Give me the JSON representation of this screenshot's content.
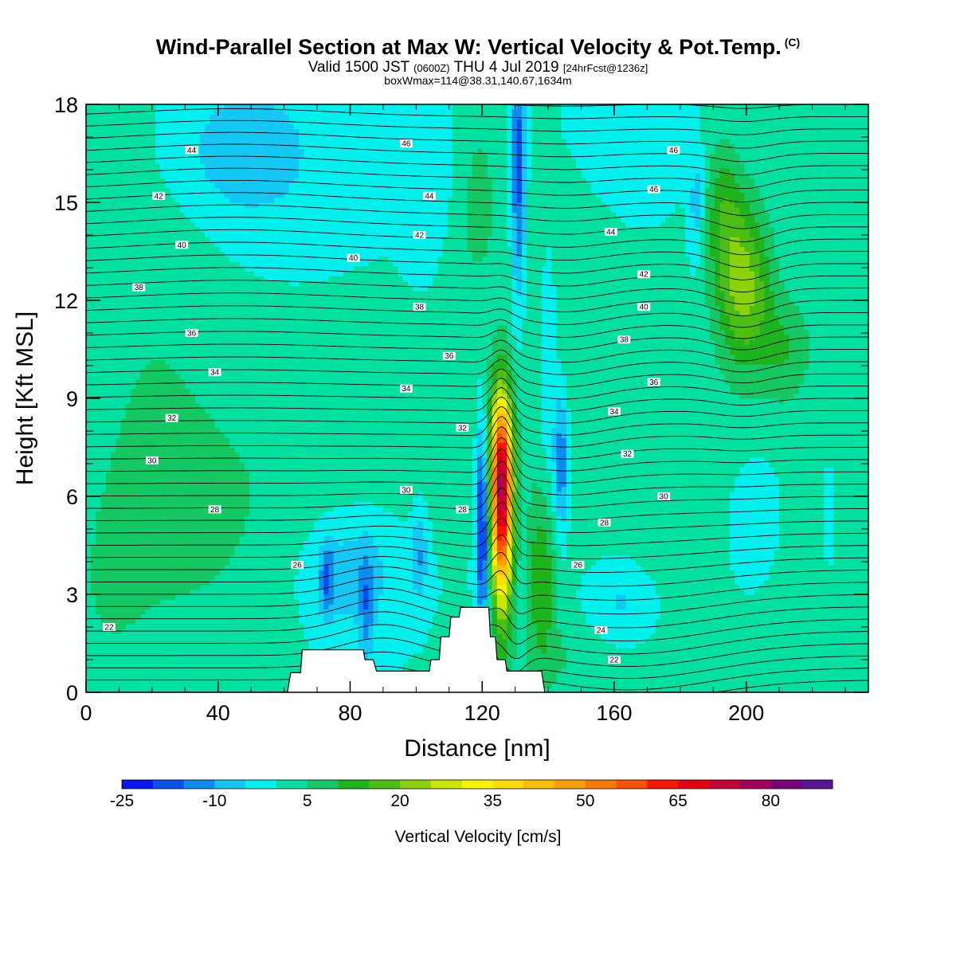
{
  "header": {
    "title": "Wind-Parallel Section at Max W: Vertical Velocity & Pot.Temp.",
    "copyright": "(C)",
    "valid_prefix": "Valid 1500 JST",
    "valid_utc": "(0600Z)",
    "valid_date": "THU 4 Jul 2019",
    "forecast": "[24hrFcst@1236z]",
    "box_info": "boxWmax=114@38.31,140.67,1634m"
  },
  "chart_data": {
    "type": "heatmap",
    "xlabel": "Distance [nm]",
    "ylabel": "Height [Kft MSL]",
    "xlim": [
      0,
      237
    ],
    "ylim": [
      0,
      18
    ],
    "x_ticks": [
      "0",
      "40",
      "80",
      "120",
      "160",
      "200"
    ],
    "y_ticks": [
      "0",
      "3",
      "6",
      "9",
      "12",
      "15",
      "18"
    ],
    "x_tick_values": [
      0,
      40,
      80,
      120,
      160,
      200
    ],
    "y_tick_values": [
      0,
      3,
      6,
      9,
      12,
      15,
      18
    ],
    "colorbar": {
      "title": "Vertical Velocity [cm/s]",
      "min": -25,
      "step": 5,
      "labels": [
        "-25",
        "-10",
        "5",
        "20",
        "35",
        "50",
        "65",
        "80"
      ],
      "label_values": [
        -25,
        -10,
        5,
        20,
        35,
        50,
        65,
        80
      ],
      "colors": [
        "#0a14f0",
        "#0a50f0",
        "#0a8cf0",
        "#14c8f5",
        "#00f0f0",
        "#00e0a0",
        "#14c864",
        "#1eb41e",
        "#4bbe14",
        "#8cd20a",
        "#c8e600",
        "#f5f500",
        "#ffdc00",
        "#ffbe00",
        "#ffa000",
        "#ff7800",
        "#ff5000",
        "#ff1400",
        "#e60014",
        "#c80032",
        "#a0005a",
        "#780078",
        "#5a1496"
      ]
    },
    "background_value": 0,
    "terrain": [
      {
        "x": 0,
        "h": 0
      },
      {
        "x": 61,
        "h": 0
      },
      {
        "x": 62,
        "h": 0.6
      },
      {
        "x": 65,
        "h": 0.6
      },
      {
        "x": 65.5,
        "h": 1.3
      },
      {
        "x": 84,
        "h": 1.3
      },
      {
        "x": 84.5,
        "h": 1.0
      },
      {
        "x": 87,
        "h": 1.0
      },
      {
        "x": 88,
        "h": 0.65
      },
      {
        "x": 104,
        "h": 0.65
      },
      {
        "x": 104.5,
        "h": 1.0
      },
      {
        "x": 107,
        "h": 1.0
      },
      {
        "x": 107.5,
        "h": 1.7
      },
      {
        "x": 110,
        "h": 1.7
      },
      {
        "x": 110.5,
        "h": 2.3
      },
      {
        "x": 113,
        "h": 2.3
      },
      {
        "x": 113.5,
        "h": 2.6
      },
      {
        "x": 122,
        "h": 2.6
      },
      {
        "x": 122.5,
        "h": 1.7
      },
      {
        "x": 124,
        "h": 1.7
      },
      {
        "x": 124.5,
        "h": 1.0
      },
      {
        "x": 127,
        "h": 1.0
      },
      {
        "x": 127.5,
        "h": 0.65
      },
      {
        "x": 138,
        "h": 0.65
      },
      {
        "x": 139,
        "h": 0
      },
      {
        "x": 237,
        "h": 0
      }
    ],
    "w_features": [
      {
        "x": 126,
        "y": 5.5,
        "sx": 2.2,
        "sy": 2.2,
        "amp": 60
      },
      {
        "x": 125.5,
        "y": 7.2,
        "sx": 2.5,
        "sy": 1.5,
        "amp": 25
      },
      {
        "x": 138,
        "y": 3.5,
        "sx": 3,
        "sy": 1.7,
        "amp": 14
      },
      {
        "x": 199,
        "y": 12.5,
        "sx": 6,
        "sy": 1.8,
        "amp": 22
      },
      {
        "x": 193,
        "y": 15,
        "sx": 4,
        "sy": 1.5,
        "amp": 10
      },
      {
        "x": 212,
        "y": 10.5,
        "sx": 6,
        "sy": 1.2,
        "amp": 9
      },
      {
        "x": 118,
        "y": 15,
        "sx": 7,
        "sy": 3,
        "amp": 6
      },
      {
        "x": 35,
        "y": 5,
        "sx": 25,
        "sy": 3,
        "amp": 5
      },
      {
        "x": 175,
        "y": 6,
        "sx": 22,
        "sy": 2.5,
        "amp": 5
      },
      {
        "x": 150,
        "y": 1,
        "sx": 20,
        "sy": 1,
        "amp": 5
      },
      {
        "x": 20,
        "y": 11,
        "sx": 15,
        "sy": 5,
        "amp": 4
      },
      {
        "x": 140,
        "y": 12,
        "sx": 8,
        "sy": 4,
        "amp": 4
      },
      {
        "x": 224,
        "y": 3,
        "sx": 12,
        "sy": 3,
        "amp": 4
      },
      {
        "x": 90,
        "y": 8,
        "sx": 30,
        "sy": 1.8,
        "amp": 3
      },
      {
        "x": 5,
        "y": 2,
        "sx": 10,
        "sy": 3,
        "amp": 3
      },
      {
        "x": 120,
        "y": 5.2,
        "sx": 1.3,
        "sy": 2.2,
        "amp": -25
      },
      {
        "x": 144,
        "y": 7,
        "sx": 1.6,
        "sy": 1.6,
        "amp": -17
      },
      {
        "x": 140,
        "y": 10,
        "sx": 2,
        "sy": 3,
        "amp": -8
      },
      {
        "x": 131,
        "y": 16,
        "sx": 1.6,
        "sy": 3,
        "amp": -19
      },
      {
        "x": 80,
        "y": 3.6,
        "sx": 10,
        "sy": 1.3,
        "amp": -9
      },
      {
        "x": 73,
        "y": 3.5,
        "sx": 1.5,
        "sy": 0.8,
        "amp": -12
      },
      {
        "x": 85,
        "y": 2.5,
        "sx": 1.5,
        "sy": 1.2,
        "amp": -10
      },
      {
        "x": 101,
        "y": 4.2,
        "sx": 1.6,
        "sy": 1,
        "amp": -10
      },
      {
        "x": 162,
        "y": 2.6,
        "sx": 8,
        "sy": 1.2,
        "amp": -8
      },
      {
        "x": 48,
        "y": 16.5,
        "sx": 16,
        "sy": 1.6,
        "amp": -9
      },
      {
        "x": 106,
        "y": 16.5,
        "sx": 5,
        "sy": 2,
        "amp": -6
      },
      {
        "x": 160,
        "y": 17.3,
        "sx": 10,
        "sy": 1,
        "amp": -5
      },
      {
        "x": 185,
        "y": 15,
        "sx": 1.5,
        "sy": 1.2,
        "amp": -9
      },
      {
        "x": 202,
        "y": 5.3,
        "sx": 7,
        "sy": 1.5,
        "amp": -6
      },
      {
        "x": 225,
        "y": 5,
        "sx": 1.5,
        "sy": 1.4,
        "amp": -6
      }
    ],
    "theta_contours": {
      "base_theta": 22,
      "base_height": 0,
      "kft_per_degree": 0.75,
      "interval": 0.5,
      "count": 55,
      "perturbations": [
        {
          "x": 126,
          "y": 6,
          "sx": 3,
          "sy": 3,
          "amp": 1.2
        },
        {
          "x": 128,
          "y": 1.5,
          "sx": 4,
          "sy": 2,
          "amp": -0.9
        },
        {
          "x": 90,
          "y": 2,
          "sx": 12,
          "sy": 2,
          "amp": 0.6
        },
        {
          "x": 165,
          "y": 1.5,
          "sx": 25,
          "sy": 2.5,
          "amp": -0.7
        },
        {
          "x": 145,
          "y": 10,
          "sx": 12,
          "sy": 4,
          "amp": -0.4
        },
        {
          "x": 199,
          "y": 13,
          "sx": 8,
          "sy": 3,
          "amp": -0.5
        },
        {
          "x": 45,
          "y": 15,
          "sx": 30,
          "sy": 4,
          "amp": 0.3
        }
      ]
    },
    "contour_labels": [
      {
        "text": "22",
        "x": 7,
        "y": 2.0
      },
      {
        "text": "26",
        "x": 64,
        "y": 3.9
      },
      {
        "text": "28",
        "x": 39,
        "y": 5.6
      },
      {
        "text": "30",
        "x": 20,
        "y": 7.1
      },
      {
        "text": "32",
        "x": 26,
        "y": 8.4
      },
      {
        "text": "34",
        "x": 39,
        "y": 9.8
      },
      {
        "text": "36",
        "x": 32,
        "y": 11.0
      },
      {
        "text": "38",
        "x": 16,
        "y": 12.4
      },
      {
        "text": "40",
        "x": 29,
        "y": 13.7
      },
      {
        "text": "42",
        "x": 22,
        "y": 15.2
      },
      {
        "text": "44",
        "x": 32,
        "y": 16.6
      },
      {
        "text": "40",
        "x": 81,
        "y": 13.3
      },
      {
        "text": "46",
        "x": 97,
        "y": 16.8
      },
      {
        "text": "44",
        "x": 104,
        "y": 15.2
      },
      {
        "text": "42",
        "x": 101,
        "y": 14.0
      },
      {
        "text": "38",
        "x": 101,
        "y": 11.8
      },
      {
        "text": "36",
        "x": 110,
        "y": 10.3
      },
      {
        "text": "34",
        "x": 97,
        "y": 9.3
      },
      {
        "text": "32",
        "x": 114,
        "y": 8.1
      },
      {
        "text": "30",
        "x": 97,
        "y": 6.2
      },
      {
        "text": "28",
        "x": 114,
        "y": 5.6
      },
      {
        "text": "26",
        "x": 149,
        "y": 3.9
      },
      {
        "text": "24",
        "x": 156,
        "y": 1.9
      },
      {
        "text": "22",
        "x": 160,
        "y": 1.0
      },
      {
        "text": "28",
        "x": 157,
        "y": 5.2
      },
      {
        "text": "30",
        "x": 175,
        "y": 6.0
      },
      {
        "text": "32",
        "x": 164,
        "y": 7.3
      },
      {
        "text": "34",
        "x": 160,
        "y": 8.6
      },
      {
        "text": "36",
        "x": 172,
        "y": 9.5
      },
      {
        "text": "38",
        "x": 163,
        "y": 10.8
      },
      {
        "text": "40",
        "x": 169,
        "y": 11.8
      },
      {
        "text": "42",
        "x": 169,
        "y": 12.8
      },
      {
        "text": "44",
        "x": 159,
        "y": 14.1
      },
      {
        "text": "46",
        "x": 172,
        "y": 15.4
      },
      {
        "text": "46",
        "x": 178,
        "y": 16.6
      }
    ]
  }
}
